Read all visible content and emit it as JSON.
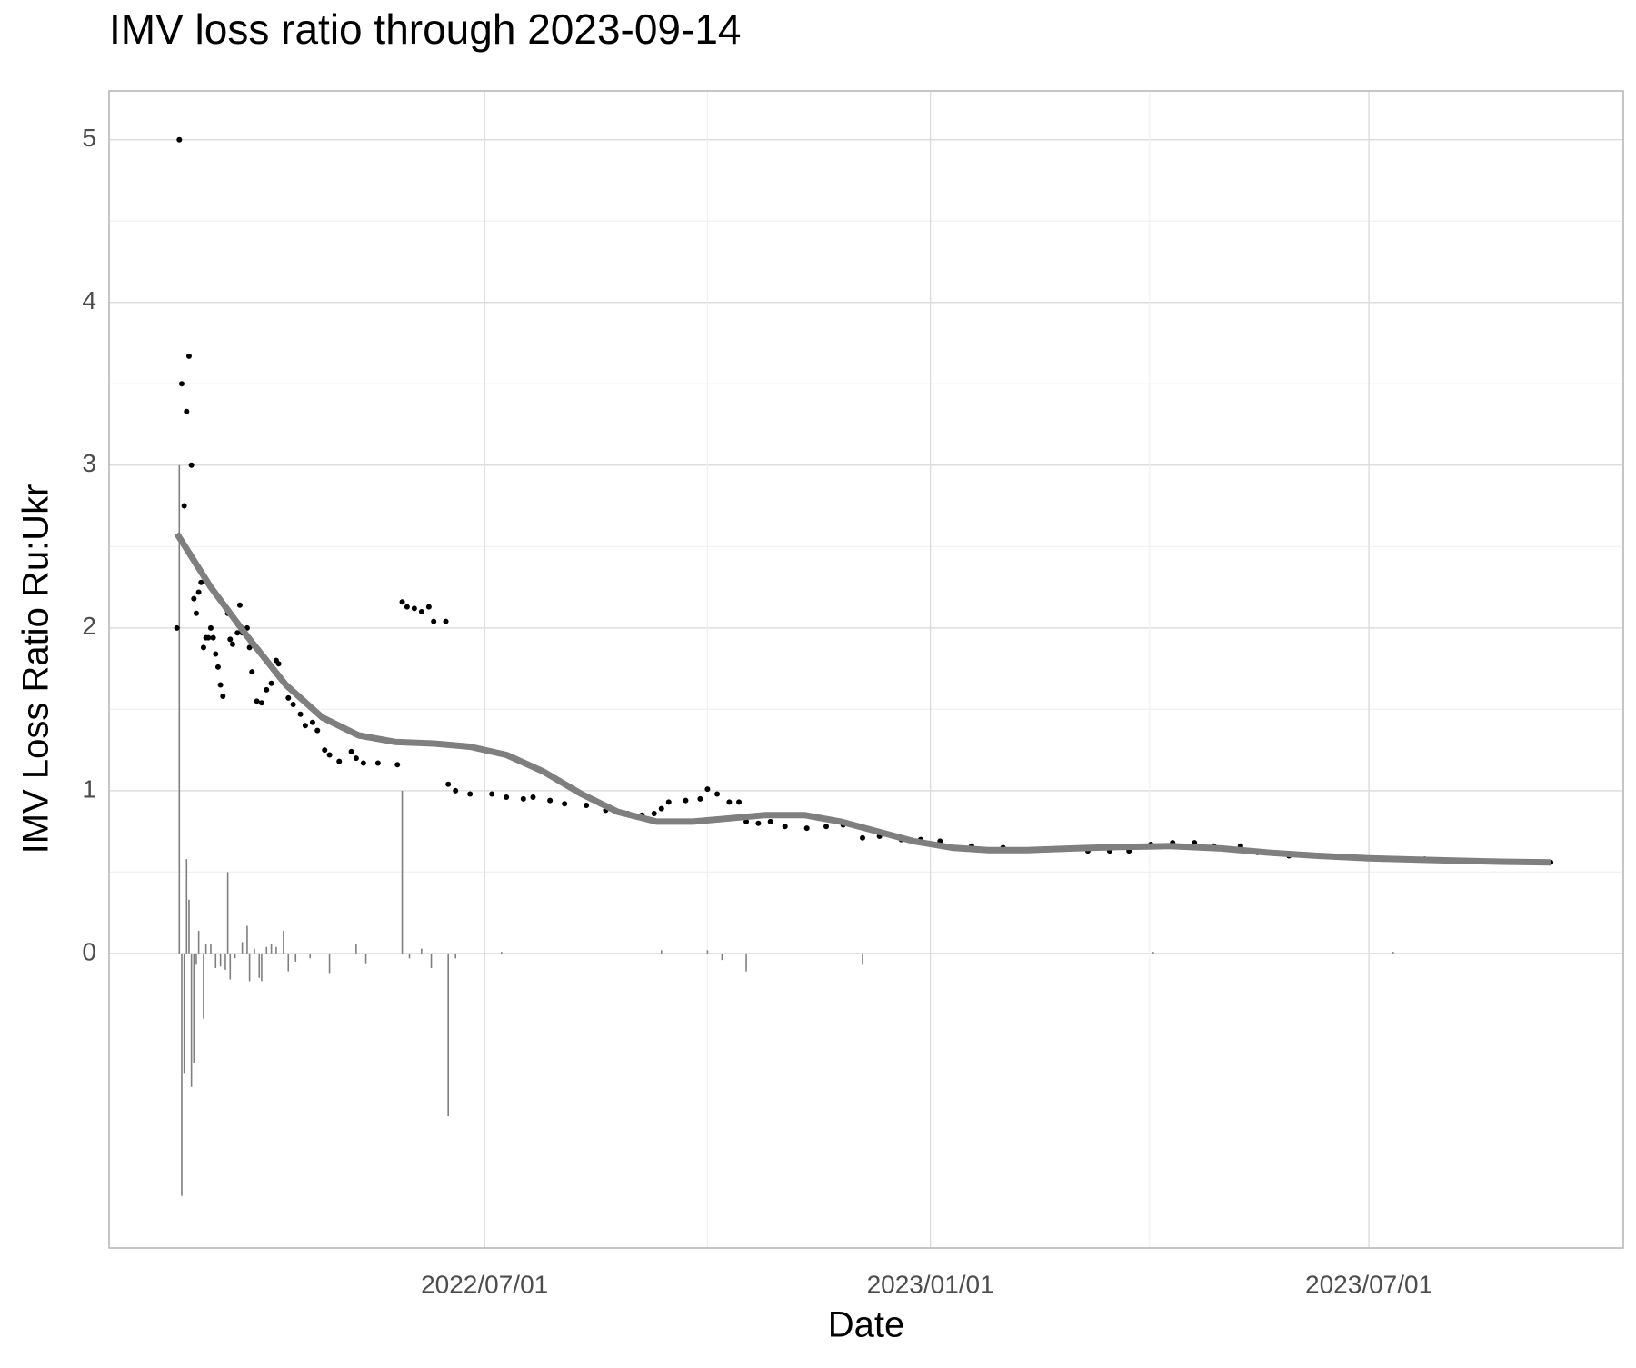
{
  "chart_data": {
    "type": "scatter",
    "title": "IMV loss ratio through 2023-09-14",
    "xlabel": "Date",
    "ylabel": "IMV Loss Ratio Ru:Ukr",
    "xlim": [
      "2022-01-27",
      "2023-10-14"
    ],
    "ylim": [
      -1.81,
      5.3
    ],
    "xticks": [
      {
        "value": "2022-07-01",
        "label": "2022/07/01"
      },
      {
        "value": "2023-01-01",
        "label": "2023/01/01"
      },
      {
        "value": "2023-07-01",
        "label": "2023/07/01"
      }
    ],
    "yticks": [
      0,
      1,
      2,
      3,
      4,
      5
    ],
    "grid": true,
    "series": [
      {
        "type": "bar",
        "color": "#7f7f7f",
        "x": [
          "2022-02-25",
          "2022-02-26",
          "2022-02-27",
          "2022-02-28",
          "2022-03-01",
          "2022-03-02",
          "2022-03-03",
          "2022-03-04",
          "2022-03-05",
          "2022-03-07",
          "2022-03-08",
          "2022-03-10",
          "2022-03-12",
          "2022-03-14",
          "2022-03-16",
          "2022-03-17",
          "2022-03-18",
          "2022-03-20",
          "2022-03-23",
          "2022-03-25",
          "2022-03-26",
          "2022-03-28",
          "2022-03-30",
          "2022-03-31",
          "2022-04-02",
          "2022-04-04",
          "2022-04-06",
          "2022-04-09",
          "2022-04-11",
          "2022-04-14",
          "2022-04-20",
          "2022-04-28",
          "2022-05-09",
          "2022-05-13",
          "2022-05-28",
          "2022-05-31",
          "2022-06-05",
          "2022-06-09",
          "2022-06-16",
          "2022-06-19",
          "2022-07-08",
          "2022-09-12",
          "2022-10-01",
          "2022-10-07",
          "2022-10-17",
          "2022-12-04",
          "2023-04-03",
          "2023-07-11"
        ],
        "values": [
          3.0,
          -1.49,
          -0.74,
          0.58,
          0.33,
          -0.82,
          -0.67,
          -0.07,
          0.14,
          -0.4,
          0.06,
          0.06,
          -0.09,
          -0.08,
          -0.1,
          0.5,
          -0.16,
          -0.03,
          0.07,
          0.17,
          -0.17,
          0.03,
          -0.15,
          -0.17,
          0.04,
          0.06,
          0.04,
          0.14,
          -0.11,
          -0.05,
          -0.03,
          -0.12,
          0.06,
          -0.06,
          1.0,
          -0.03,
          0.03,
          -0.09,
          -1.0,
          -0.03,
          0.01,
          0.02,
          0.02,
          -0.04,
          -0.11,
          -0.07,
          0.01,
          0.01
        ]
      },
      {
        "type": "scatter",
        "color": "#000000",
        "x": [
          "2022-02-24",
          "2022-02-25",
          "2022-02-26",
          "2022-02-27",
          "2022-02-28",
          "2022-03-01",
          "2022-03-02",
          "2022-03-03",
          "2022-03-04",
          "2022-03-05",
          "2022-03-06",
          "2022-03-07",
          "2022-03-08",
          "2022-03-09",
          "2022-03-10",
          "2022-03-11",
          "2022-03-12",
          "2022-03-13",
          "2022-03-14",
          "2022-03-15",
          "2022-03-17",
          "2022-03-18",
          "2022-03-19",
          "2022-03-21",
          "2022-03-22",
          "2022-03-23",
          "2022-03-24",
          "2022-03-25",
          "2022-03-26",
          "2022-03-27",
          "2022-03-29",
          "2022-03-31",
          "2022-04-02",
          "2022-04-04",
          "2022-04-06",
          "2022-04-07",
          "2022-04-09",
          "2022-04-11",
          "2022-04-13",
          "2022-04-16",
          "2022-04-18",
          "2022-04-21",
          "2022-04-23",
          "2022-04-26",
          "2022-04-28",
          "2022-05-02",
          "2022-05-07",
          "2022-05-09",
          "2022-05-12",
          "2022-05-18",
          "2022-05-26",
          "2022-05-28",
          "2022-05-30",
          "2022-06-02",
          "2022-06-05",
          "2022-06-08",
          "2022-06-10",
          "2022-06-15",
          "2022-06-16",
          "2022-06-19",
          "2022-06-25",
          "2022-07-04",
          "2022-07-10",
          "2022-07-17",
          "2022-07-21",
          "2022-07-28",
          "2022-08-03",
          "2022-08-12",
          "2022-08-20",
          "2022-08-29",
          "2022-09-04",
          "2022-09-09",
          "2022-09-12",
          "2022-09-15",
          "2022-09-22",
          "2022-09-28",
          "2022-10-01",
          "2022-10-05",
          "2022-10-10",
          "2022-10-14",
          "2022-10-17",
          "2022-10-22",
          "2022-10-27",
          "2022-11-02",
          "2022-11-11",
          "2022-11-19",
          "2022-11-26",
          "2022-12-02",
          "2022-12-04",
          "2022-12-11",
          "2022-12-20",
          "2022-12-28",
          "2023-01-05",
          "2023-01-18",
          "2023-01-31",
          "2023-02-17",
          "2023-03-07",
          "2023-03-16",
          "2023-03-24",
          "2023-04-02",
          "2023-04-11",
          "2023-04-20",
          "2023-04-28",
          "2023-05-09",
          "2023-05-16",
          "2023-05-29",
          "2023-06-11",
          "2023-06-24",
          "2023-07-07",
          "2023-07-24",
          "2023-08-11",
          "2023-08-28",
          "2023-09-14"
        ],
        "values": [
          2.0,
          5.0,
          3.5,
          2.75,
          3.33,
          3.67,
          3.0,
          2.18,
          2.09,
          2.22,
          2.28,
          1.88,
          1.94,
          1.94,
          2.0,
          1.94,
          1.84,
          1.76,
          1.65,
          1.58,
          2.09,
          1.93,
          1.9,
          1.97,
          2.14,
          1.97,
          1.97,
          2.0,
          1.88,
          1.73,
          1.55,
          1.54,
          1.62,
          1.66,
          1.8,
          1.78,
          1.67,
          1.57,
          1.53,
          1.47,
          1.4,
          1.42,
          1.37,
          1.25,
          1.22,
          1.18,
          1.24,
          1.2,
          1.17,
          1.17,
          1.16,
          2.16,
          2.13,
          2.12,
          2.1,
          2.13,
          2.04,
          2.04,
          1.04,
          1.0,
          0.98,
          0.98,
          0.96,
          0.95,
          0.96,
          0.94,
          0.92,
          0.91,
          0.88,
          0.86,
          0.85,
          0.86,
          0.89,
          0.93,
          0.94,
          0.95,
          1.01,
          0.98,
          0.93,
          0.93,
          0.81,
          0.8,
          0.81,
          0.78,
          0.77,
          0.78,
          0.79,
          0.78,
          0.71,
          0.72,
          0.7,
          0.7,
          0.69,
          0.66,
          0.65,
          0.64,
          0.63,
          0.63,
          0.63,
          0.67,
          0.68,
          0.68,
          0.66,
          0.66,
          0.62,
          0.6,
          0.6,
          0.59,
          0.58,
          0.58,
          0.57,
          0.56,
          0.56
        ]
      },
      {
        "type": "line",
        "color": "#7f7f7f",
        "x": [
          "2022-02-24",
          "2022-03-10",
          "2022-03-25",
          "2022-04-10",
          "2022-04-25",
          "2022-05-10",
          "2022-05-25",
          "2022-06-10",
          "2022-06-25",
          "2022-07-10",
          "2022-07-25",
          "2022-08-10",
          "2022-08-25",
          "2022-09-10",
          "2022-09-25",
          "2022-10-10",
          "2022-10-25",
          "2022-11-10",
          "2022-11-25",
          "2022-12-10",
          "2022-12-25",
          "2023-01-10",
          "2023-01-25",
          "2023-02-10",
          "2023-03-01",
          "2023-03-20",
          "2023-04-10",
          "2023-05-01",
          "2023-05-20",
          "2023-06-10",
          "2023-07-01",
          "2023-07-25",
          "2023-08-20",
          "2023-09-14"
        ],
        "values": [
          2.58,
          2.25,
          1.95,
          1.65,
          1.45,
          1.34,
          1.3,
          1.29,
          1.27,
          1.22,
          1.12,
          0.98,
          0.87,
          0.81,
          0.81,
          0.83,
          0.85,
          0.85,
          0.81,
          0.75,
          0.69,
          0.65,
          0.635,
          0.635,
          0.645,
          0.655,
          0.66,
          0.645,
          0.62,
          0.6,
          0.585,
          0.575,
          0.565,
          0.56
        ]
      }
    ]
  }
}
